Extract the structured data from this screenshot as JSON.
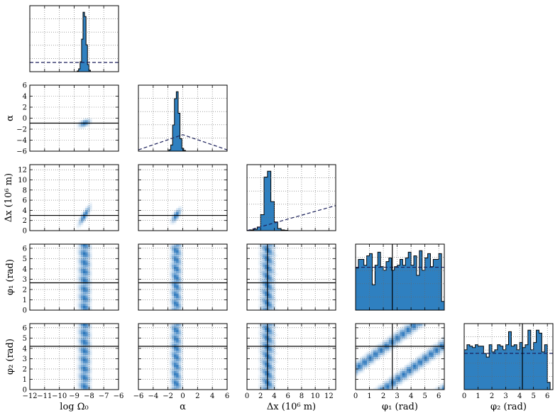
{
  "chart_data": {
    "type": "corner",
    "params": [
      {
        "id": "logOmega",
        "label": "log Ω₀",
        "range": [
          -12,
          -6
        ],
        "ticks": [
          -12,
          -11,
          -10,
          -9,
          -8,
          -7,
          -6
        ],
        "truth": -8.3
      },
      {
        "id": "alpha",
        "label": "α",
        "range": [
          -6,
          6
        ],
        "ticks": [
          -6,
          -4,
          -2,
          0,
          2,
          4,
          6
        ],
        "truth": -0.9
      },
      {
        "id": "dx",
        "label": "Δx (10⁶ m)",
        "range": [
          0,
          13
        ],
        "ticks": [
          0,
          2,
          4,
          6,
          8,
          10,
          12
        ],
        "truth": 3.0
      },
      {
        "id": "phi1",
        "label": "φ₁ (rad)",
        "range": [
          0,
          6.4
        ],
        "ticks": [
          0,
          1,
          2,
          3,
          4,
          5,
          6
        ],
        "truth": 2.65
      },
      {
        "id": "phi2",
        "label": "φ₂ (rad)",
        "range": [
          0,
          6.4
        ],
        "ticks": [
          0,
          1,
          2,
          3,
          4,
          5,
          6
        ],
        "truth": 4.2
      }
    ],
    "histograms": [
      {
        "param": "logOmega",
        "bins": [
          [
            -8.85,
            0
          ],
          [
            -8.75,
            1
          ],
          [
            -8.65,
            4
          ],
          [
            -8.55,
            14
          ],
          [
            -8.45,
            46
          ],
          [
            -8.35,
            84
          ],
          [
            -8.25,
            78
          ],
          [
            -8.15,
            38
          ],
          [
            -8.05,
            10
          ],
          [
            -7.95,
            2
          ],
          [
            -7.85,
            0
          ]
        ],
        "prior": [
          0.14,
          0.14
        ]
      },
      {
        "param": "alpha",
        "bins": [
          [
            -2.0,
            0
          ],
          [
            -1.75,
            2
          ],
          [
            -1.5,
            9
          ],
          [
            -1.25,
            38
          ],
          [
            -1.0,
            76
          ],
          [
            -0.75,
            86
          ],
          [
            -0.5,
            55
          ],
          [
            -0.25,
            18
          ],
          [
            0.0,
            4
          ],
          [
            0.25,
            1
          ],
          [
            0.5,
            0
          ]
        ],
        "prior": [
          0.02,
          0.25,
          0.02
        ]
      },
      {
        "param": "dx",
        "bins": [
          [
            0.25,
            0.5
          ],
          [
            0.75,
            1
          ],
          [
            1.25,
            2
          ],
          [
            1.75,
            5
          ],
          [
            2.25,
            22
          ],
          [
            2.75,
            74
          ],
          [
            3.25,
            82
          ],
          [
            3.75,
            40
          ],
          [
            4.25,
            12
          ],
          [
            4.75,
            3
          ],
          [
            5.25,
            1
          ],
          [
            5.75,
            0.5
          ],
          [
            6.25,
            0
          ]
        ],
        "prior": [
          0.0,
          0.38
        ]
      },
      {
        "param": "phi1",
        "bins": [
          [
            0.1,
            0.58
          ],
          [
            0.3,
            0.7
          ],
          [
            0.5,
            0.7
          ],
          [
            0.7,
            0.62
          ],
          [
            0.9,
            0.75
          ],
          [
            1.1,
            0.78
          ],
          [
            1.3,
            0.35
          ],
          [
            1.5,
            0.62
          ],
          [
            1.7,
            0.8
          ],
          [
            1.9,
            0.6
          ],
          [
            2.1,
            0.55
          ],
          [
            2.3,
            0.67
          ],
          [
            2.5,
            0.72
          ],
          [
            2.7,
            0.55
          ],
          [
            2.9,
            0.6
          ],
          [
            3.1,
            0.62
          ],
          [
            3.3,
            0.7
          ],
          [
            3.5,
            0.62
          ],
          [
            3.7,
            0.72
          ],
          [
            3.9,
            0.8
          ],
          [
            4.1,
            0.62
          ],
          [
            4.3,
            0.75
          ],
          [
            4.5,
            0.48
          ],
          [
            4.7,
            0.82
          ],
          [
            4.9,
            0.55
          ],
          [
            5.1,
            0.72
          ],
          [
            5.3,
            0.78
          ],
          [
            5.5,
            0.6
          ],
          [
            5.7,
            0.7
          ],
          [
            5.9,
            0.7
          ],
          [
            6.1,
            0.78
          ],
          [
            6.3,
            0.12
          ]
        ],
        "prior": [
          0.65,
          0.65
        ]
      },
      {
        "param": "phi2",
        "bins": [
          [
            0.1,
            0.55
          ],
          [
            0.3,
            0.62
          ],
          [
            0.5,
            0.6
          ],
          [
            0.7,
            0.58
          ],
          [
            0.9,
            0.62
          ],
          [
            1.1,
            0.6
          ],
          [
            1.3,
            0.6
          ],
          [
            1.5,
            0.5
          ],
          [
            1.7,
            0.45
          ],
          [
            1.9,
            0.62
          ],
          [
            2.1,
            0.52
          ],
          [
            2.3,
            0.55
          ],
          [
            2.5,
            0.62
          ],
          [
            2.7,
            0.6
          ],
          [
            2.9,
            0.55
          ],
          [
            3.1,
            0.62
          ],
          [
            3.3,
            0.8
          ],
          [
            3.5,
            0.6
          ],
          [
            3.7,
            0.62
          ],
          [
            3.9,
            0.55
          ],
          [
            4.1,
            0.65
          ],
          [
            4.3,
            0.58
          ],
          [
            4.5,
            0.62
          ],
          [
            4.7,
            0.82
          ],
          [
            4.9,
            0.55
          ],
          [
            5.1,
            0.65
          ],
          [
            5.3,
            0.82
          ],
          [
            5.5,
            0.78
          ],
          [
            5.7,
            0.52
          ],
          [
            5.9,
            0.62
          ],
          [
            6.1,
            0.1
          ]
        ],
        "prior": [
          0.55,
          0.55
        ]
      }
    ],
    "band_centers": {
      "logOmega": -8.3,
      "alpha": -0.9,
      "dx": 3.0
    },
    "blob_slopes": {
      "logOmega-alpha": 0.8,
      "logOmega-dx": 4.0,
      "alpha-dx": 1.5
    },
    "phi_stripe_intercepts": [
      2.0,
      -2.0,
      -6.4
    ],
    "colors": {
      "fill": "#2f80c0",
      "edge": "#000000",
      "truth": "#000000",
      "prior": "#1a1f5a",
      "grid": "#666666",
      "density": "#1f6fb8"
    },
    "grid": true,
    "grid_style": "dotted"
  }
}
